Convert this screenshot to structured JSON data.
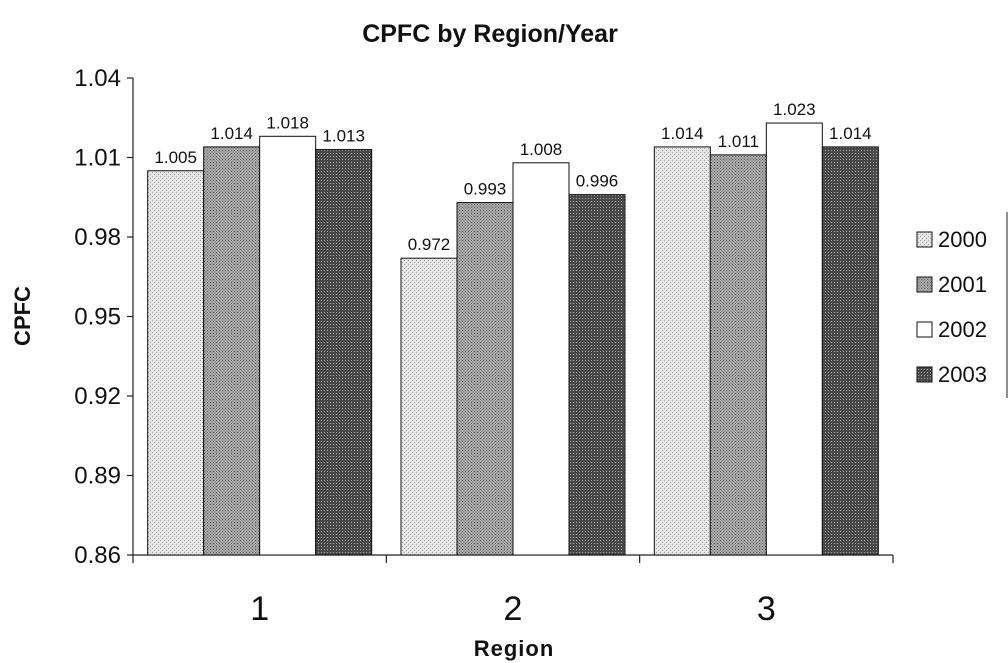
{
  "chart_data": {
    "type": "bar",
    "title": "CPFC by Region/Year",
    "xlabel": "Region",
    "ylabel": "CPFC",
    "categories": [
      "1",
      "2",
      "3"
    ],
    "series": [
      {
        "name": "2000",
        "values": [
          1.005,
          0.972,
          1.014
        ],
        "labels": [
          "1.005",
          "0.972",
          "1.014"
        ],
        "fill": "#d9d9d9",
        "pattern": "light-dots"
      },
      {
        "name": "2001",
        "values": [
          1.014,
          0.993,
          1.011
        ],
        "labels": [
          "1.014",
          "0.993",
          "1.011"
        ],
        "fill": "#9a9a9a",
        "pattern": "medium-dots"
      },
      {
        "name": "2002",
        "values": [
          1.018,
          1.008,
          1.023
        ],
        "labels": [
          "1.018",
          "1.008",
          "1.023"
        ],
        "fill": "#ffffff",
        "pattern": "none"
      },
      {
        "name": "2003",
        "values": [
          1.013,
          0.996,
          1.014
        ],
        "labels": [
          "1.013",
          "0.996",
          "1.014"
        ],
        "fill": "#555555",
        "pattern": "dark-dots"
      }
    ],
    "ylim": [
      0.86,
      1.04
    ],
    "yticks": [
      "0.86",
      "0.89",
      "0.92",
      "0.95",
      "0.98",
      "1.01",
      "1.04"
    ],
    "grid": false,
    "legend": "right"
  }
}
